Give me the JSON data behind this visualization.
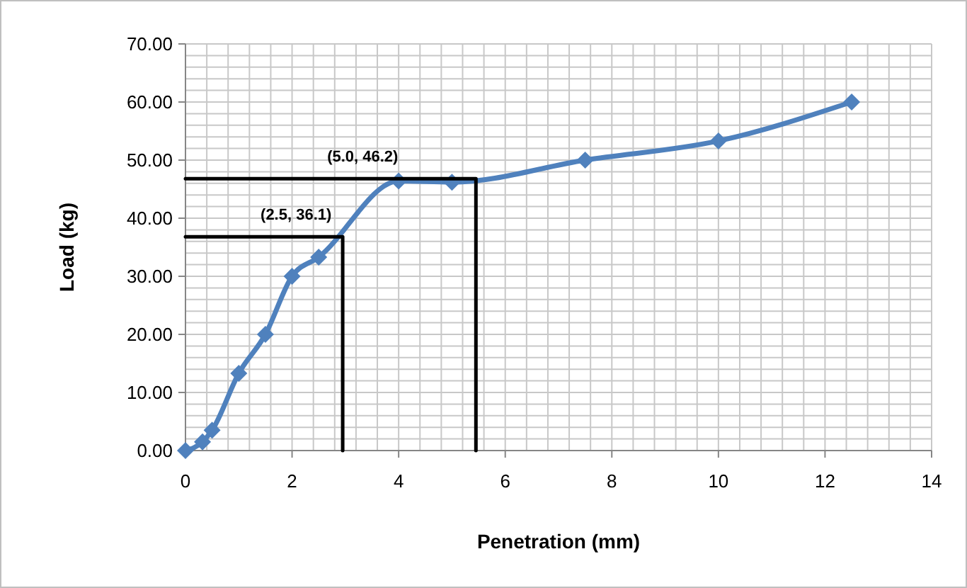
{
  "chart_data": {
    "type": "line",
    "xlabel": "Penetration (mm)",
    "ylabel": "Load (kg)",
    "xlim": [
      0,
      14
    ],
    "ylim": [
      0,
      70
    ],
    "xticks": [
      0,
      {
        "value": 0.4,
        "label": null
      },
      {
        "value": 0.8,
        "label": null
      },
      {
        "value": 1.2,
        "label": null
      },
      {
        "value": 1.6,
        "label": null
      },
      2,
      {
        "value": 2.4,
        "label": null
      },
      {
        "value": 2.8,
        "label": null
      },
      {
        "value": 3.2,
        "label": null
      },
      {
        "value": 3.6,
        "label": null
      },
      4,
      {
        "value": 4.4,
        "label": null
      },
      {
        "value": 4.8,
        "label": null
      },
      {
        "value": 5.2,
        "label": null
      },
      {
        "value": 5.6,
        "label": null
      },
      6,
      {
        "value": 6.4,
        "label": null
      },
      {
        "value": 6.8,
        "label": null
      },
      {
        "value": 7.2,
        "label": null
      },
      {
        "value": 7.6,
        "label": null
      },
      8,
      {
        "value": 8.4,
        "label": null
      },
      {
        "value": 8.8,
        "label": null
      },
      {
        "value": 9.2,
        "label": null
      },
      {
        "value": 9.6,
        "label": null
      },
      10,
      {
        "value": 10.4,
        "label": null
      },
      {
        "value": 10.8,
        "label": null
      },
      {
        "value": 11.2,
        "label": null
      },
      {
        "value": 11.6,
        "label": null
      },
      12,
      {
        "value": 12.4,
        "label": null
      },
      {
        "value": 12.8,
        "label": null
      },
      {
        "value": 13.2,
        "label": null
      },
      {
        "value": 13.6,
        "label": null
      },
      14
    ],
    "yticks": [
      {
        "value": 0,
        "label": "0.00"
      },
      {
        "value": 2,
        "label": null
      },
      {
        "value": 4,
        "label": null
      },
      {
        "value": 6,
        "label": null
      },
      {
        "value": 8,
        "label": null
      },
      {
        "value": 10,
        "label": "10.00"
      },
      {
        "value": 12,
        "label": null
      },
      {
        "value": 14,
        "label": null
      },
      {
        "value": 16,
        "label": null
      },
      {
        "value": 18,
        "label": null
      },
      {
        "value": 20,
        "label": "20.00"
      },
      {
        "value": 22,
        "label": null
      },
      {
        "value": 24,
        "label": null
      },
      {
        "value": 26,
        "label": null
      },
      {
        "value": 28,
        "label": null
      },
      {
        "value": 30,
        "label": "30.00"
      },
      {
        "value": 32,
        "label": null
      },
      {
        "value": 34,
        "label": null
      },
      {
        "value": 36,
        "label": null
      },
      {
        "value": 38,
        "label": null
      },
      {
        "value": 40,
        "label": "40.00"
      },
      {
        "value": 42,
        "label": null
      },
      {
        "value": 44,
        "label": null
      },
      {
        "value": 46,
        "label": null
      },
      {
        "value": 48,
        "label": null
      },
      {
        "value": 50,
        "label": "50.00"
      },
      {
        "value": 52,
        "label": null
      },
      {
        "value": 54,
        "label": null
      },
      {
        "value": 56,
        "label": null
      },
      {
        "value": 58,
        "label": null
      },
      {
        "value": 60,
        "label": "60.00"
      },
      {
        "value": 62,
        "label": null
      },
      {
        "value": 64,
        "label": null
      },
      {
        "value": 66,
        "label": null
      },
      {
        "value": 68,
        "label": null
      },
      {
        "value": 70,
        "label": "70.00"
      }
    ],
    "grid": true,
    "series": [
      {
        "type": "line",
        "color": "#4f81bd",
        "marker": "diamond",
        "x": [
          0,
          0.32,
          0.5,
          1,
          1.5,
          2,
          2.5,
          4,
          5,
          7.5,
          10,
          12.5
        ],
        "values": [
          0,
          1.5,
          3.5,
          13.3,
          20,
          30,
          33.3,
          46.4,
          46.2,
          50,
          53.3,
          60
        ]
      },
      {
        "type": "line",
        "color": "#000000",
        "marker": "none",
        "x": [
          0,
          2.95,
          2.95
        ],
        "values": [
          36.8,
          36.8,
          0
        ]
      },
      {
        "type": "line",
        "color": "#000000",
        "marker": "none",
        "x": [
          0,
          5.45,
          5.45
        ],
        "values": [
          46.8,
          46.8,
          0
        ]
      }
    ],
    "annotations": [
      "(2.5, 36.1)",
      "(5.0, 46.2)"
    ]
  }
}
